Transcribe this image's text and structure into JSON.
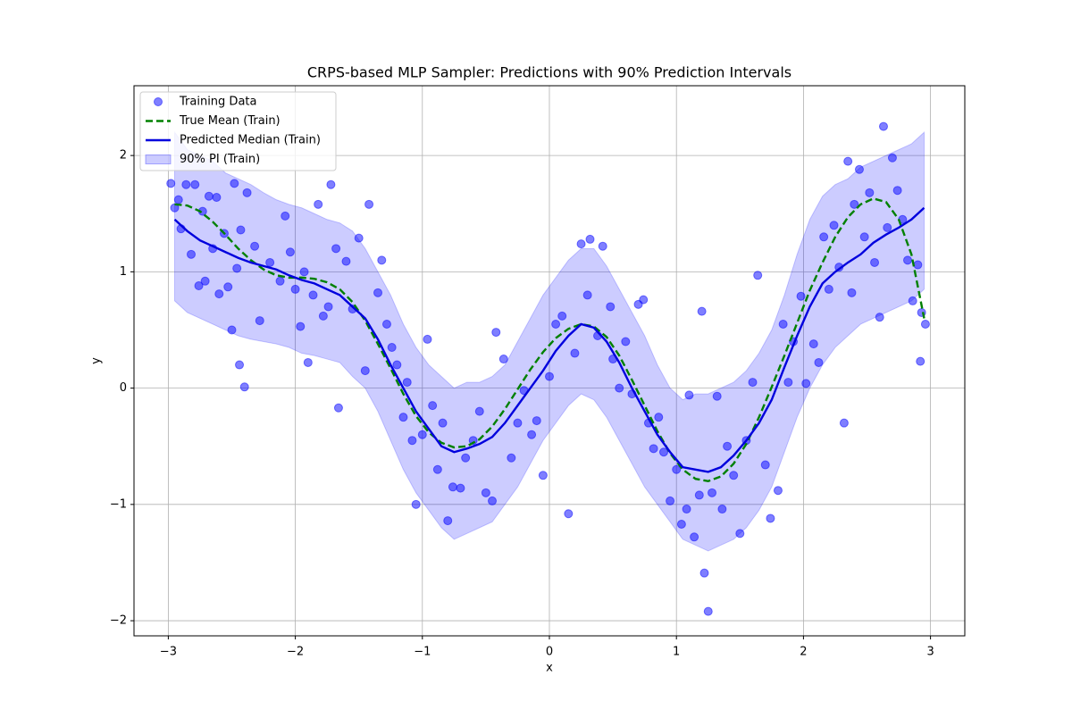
{
  "chart_data": {
    "type": "line",
    "title": "CRPS-based MLP Sampler: Predictions with 90% Prediction Intervals",
    "x_label": "x",
    "y_label": "y",
    "xlim": [
      -3.27,
      3.27
    ],
    "ylim": [
      -2.13,
      2.6
    ],
    "xticks": [
      {
        "value": -3,
        "label": "−3"
      },
      {
        "value": -2,
        "label": "−2"
      },
      {
        "value": -1,
        "label": "−1"
      },
      0,
      1,
      2,
      3
    ],
    "yticks": [
      {
        "value": -2,
        "label": "−2"
      },
      {
        "value": -1,
        "label": "−1"
      },
      0,
      1,
      2
    ],
    "grid": true,
    "legend": "upper left",
    "x": [
      -2.95,
      -2.85,
      -2.75,
      -2.65,
      -2.55,
      -2.45,
      -2.35,
      -2.25,
      -2.15,
      -2.05,
      -1.95,
      -1.85,
      -1.75,
      -1.65,
      -1.55,
      -1.45,
      -1.35,
      -1.25,
      -1.15,
      -1.05,
      -0.95,
      -0.85,
      -0.75,
      -0.65,
      -0.55,
      -0.45,
      -0.35,
      -0.25,
      -0.15,
      -0.05,
      0.05,
      0.15,
      0.25,
      0.35,
      0.45,
      0.55,
      0.65,
      0.75,
      0.85,
      0.95,
      1.05,
      1.15,
      1.25,
      1.35,
      1.45,
      1.55,
      1.65,
      1.75,
      1.85,
      1.95,
      2.05,
      2.15,
      2.25,
      2.35,
      2.45,
      2.55,
      2.65,
      2.75,
      2.85,
      2.95
    ],
    "series": [
      {
        "name": "Training Data",
        "type": "scatter",
        "color": "#0000ff",
        "x": [
          -2.98,
          -2.95,
          -2.92,
          -2.9,
          -2.86,
          -2.82,
          -2.79,
          -2.76,
          -2.73,
          -2.71,
          -2.68,
          -2.65,
          -2.62,
          -2.6,
          -2.56,
          -2.53,
          -2.5,
          -2.48,
          -2.46,
          -2.44,
          -2.43,
          -2.4,
          -2.38,
          -2.32,
          -2.28,
          -2.2,
          -2.12,
          -2.08,
          -2.04,
          -2.0,
          -1.96,
          -1.93,
          -1.9,
          -1.86,
          -1.82,
          -1.78,
          -1.74,
          -1.72,
          -1.68,
          -1.66,
          -1.6,
          -1.55,
          -1.5,
          -1.45,
          -1.42,
          -1.35,
          -1.32,
          -1.28,
          -1.24,
          -1.2,
          -1.15,
          -1.12,
          -1.08,
          -1.05,
          -1.0,
          -0.96,
          -0.92,
          -0.88,
          -0.84,
          -0.8,
          -0.76,
          -0.7,
          -0.66,
          -0.6,
          -0.55,
          -0.5,
          -0.45,
          -0.42,
          -0.36,
          -0.3,
          -0.25,
          -0.2,
          -0.14,
          -0.1,
          -0.05,
          0.0,
          0.05,
          0.1,
          0.15,
          0.2,
          0.25,
          0.3,
          0.32,
          0.38,
          0.42,
          0.48,
          0.5,
          0.55,
          0.6,
          0.65,
          0.7,
          0.74,
          0.78,
          0.82,
          0.86,
          0.9,
          0.95,
          1.0,
          1.04,
          1.08,
          1.1,
          1.14,
          1.18,
          1.2,
          1.22,
          1.25,
          1.28,
          1.32,
          1.36,
          1.4,
          1.45,
          1.5,
          1.55,
          1.6,
          1.64,
          1.7,
          1.74,
          1.8,
          1.84,
          1.88,
          1.92,
          1.98,
          2.02,
          2.08,
          2.12,
          2.16,
          2.2,
          2.24,
          2.28,
          2.32,
          2.35,
          2.38,
          2.4,
          2.44,
          2.48,
          2.52,
          2.56,
          2.6,
          2.63,
          2.66,
          2.7,
          2.74,
          2.78,
          2.82,
          2.86,
          2.9,
          2.93,
          2.96,
          2.92
        ],
        "values": [
          1.76,
          1.55,
          1.62,
          1.37,
          1.75,
          1.15,
          1.75,
          0.88,
          1.52,
          0.92,
          1.65,
          1.2,
          1.64,
          0.81,
          1.33,
          0.87,
          0.5,
          1.76,
          1.03,
          0.2,
          1.36,
          0.01,
          1.68,
          1.22,
          0.58,
          1.08,
          0.92,
          1.48,
          1.17,
          0.85,
          0.53,
          1.0,
          0.22,
          0.8,
          1.58,
          0.62,
          0.7,
          1.75,
          1.2,
          -0.17,
          1.09,
          0.68,
          1.29,
          0.15,
          1.58,
          0.82,
          1.1,
          0.55,
          0.35,
          0.2,
          -0.25,
          0.05,
          -0.45,
          -1.0,
          -0.4,
          0.42,
          -0.15,
          -0.7,
          -0.3,
          -1.14,
          -0.85,
          -0.86,
          -0.6,
          -0.45,
          -0.2,
          -0.9,
          -0.97,
          0.48,
          0.25,
          -0.6,
          -0.3,
          -0.02,
          -0.4,
          -0.28,
          -0.75,
          0.1,
          0.55,
          0.62,
          -1.08,
          0.3,
          1.24,
          0.8,
          1.28,
          0.45,
          1.22,
          0.7,
          0.25,
          0.0,
          0.4,
          -0.05,
          0.72,
          0.76,
          -0.3,
          -0.52,
          -0.25,
          -0.55,
          -0.97,
          -0.7,
          -1.17,
          -1.04,
          -0.06,
          -1.28,
          -0.92,
          0.66,
          -1.59,
          -1.92,
          -0.9,
          -0.07,
          -1.04,
          -0.5,
          -0.75,
          -1.25,
          -0.45,
          0.05,
          0.97,
          -0.66,
          -1.12,
          -0.88,
          0.55,
          0.05,
          0.4,
          0.79,
          0.04,
          0.38,
          0.22,
          1.3,
          0.85,
          1.4,
          1.04,
          -0.3,
          1.95,
          0.82,
          1.58,
          1.88,
          1.3,
          1.68,
          1.08,
          0.61,
          2.25,
          1.38,
          1.98,
          1.7,
          1.45,
          1.1,
          0.75,
          1.06,
          0.65,
          0.55,
          0.23
        ]
      },
      {
        "name": "True Mean (Train)",
        "type": "line",
        "dash": true,
        "color": "#008000",
        "values": [
          1.58,
          1.57,
          1.52,
          1.43,
          1.32,
          1.2,
          1.1,
          1.02,
          0.97,
          0.95,
          0.95,
          0.94,
          0.91,
          0.85,
          0.74,
          0.58,
          0.38,
          0.17,
          -0.05,
          -0.24,
          -0.38,
          -0.47,
          -0.51,
          -0.5,
          -0.44,
          -0.33,
          -0.18,
          -0.01,
          0.16,
          0.31,
          0.43,
          0.51,
          0.55,
          0.53,
          0.44,
          0.28,
          0.07,
          -0.15,
          -0.37,
          -0.56,
          -0.7,
          -0.78,
          -0.8,
          -0.76,
          -0.65,
          -0.48,
          -0.25,
          0.01,
          0.28,
          0.56,
          0.84,
          1.08,
          1.3,
          1.47,
          1.58,
          1.63,
          1.6,
          1.45,
          1.15,
          0.6
        ]
      },
      {
        "name": "Predicted Median (Train)",
        "type": "line",
        "dash": false,
        "color": "#0000dd",
        "values": [
          1.45,
          1.35,
          1.27,
          1.22,
          1.17,
          1.12,
          1.08,
          1.05,
          1.02,
          0.97,
          0.93,
          0.9,
          0.85,
          0.8,
          0.7,
          0.6,
          0.42,
          0.2,
          0.0,
          -0.2,
          -0.35,
          -0.5,
          -0.55,
          -0.52,
          -0.48,
          -0.42,
          -0.3,
          -0.15,
          0.0,
          0.15,
          0.32,
          0.45,
          0.55,
          0.52,
          0.4,
          0.22,
          0.0,
          -0.2,
          -0.4,
          -0.55,
          -0.68,
          -0.7,
          -0.72,
          -0.68,
          -0.58,
          -0.45,
          -0.3,
          -0.1,
          0.18,
          0.45,
          0.7,
          0.9,
          1.0,
          1.08,
          1.15,
          1.25,
          1.32,
          1.38,
          1.45,
          1.55
        ]
      },
      {
        "name": "90% PI (Train)",
        "type": "band",
        "color": "#0000ff",
        "upper": [
          2.2,
          2.05,
          2.0,
          1.95,
          1.85,
          1.8,
          1.75,
          1.68,
          1.62,
          1.58,
          1.55,
          1.5,
          1.45,
          1.42,
          1.35,
          1.2,
          1.0,
          0.8,
          0.55,
          0.35,
          0.2,
          0.1,
          0.0,
          0.05,
          0.05,
          0.1,
          0.2,
          0.4,
          0.6,
          0.8,
          0.95,
          1.1,
          1.2,
          1.2,
          1.05,
          0.85,
          0.65,
          0.45,
          0.2,
          0.0,
          -0.1,
          -0.05,
          -0.05,
          0.0,
          0.05,
          0.15,
          0.3,
          0.5,
          0.8,
          1.15,
          1.45,
          1.65,
          1.75,
          1.8,
          1.9,
          1.95,
          2.0,
          2.05,
          2.1,
          2.2
        ],
        "lower": [
          0.75,
          0.65,
          0.6,
          0.55,
          0.5,
          0.45,
          0.42,
          0.4,
          0.38,
          0.35,
          0.3,
          0.28,
          0.25,
          0.22,
          0.1,
          0.0,
          -0.2,
          -0.45,
          -0.7,
          -0.9,
          -1.05,
          -1.2,
          -1.3,
          -1.25,
          -1.2,
          -1.15,
          -1.0,
          -0.85,
          -0.65,
          -0.45,
          -0.3,
          -0.15,
          -0.05,
          -0.1,
          -0.25,
          -0.45,
          -0.65,
          -0.85,
          -1.0,
          -1.15,
          -1.3,
          -1.35,
          -1.4,
          -1.35,
          -1.3,
          -1.2,
          -1.05,
          -0.85,
          -0.55,
          -0.25,
          0.0,
          0.2,
          0.35,
          0.45,
          0.55,
          0.6,
          0.65,
          0.7,
          0.75,
          0.85
        ]
      }
    ]
  }
}
